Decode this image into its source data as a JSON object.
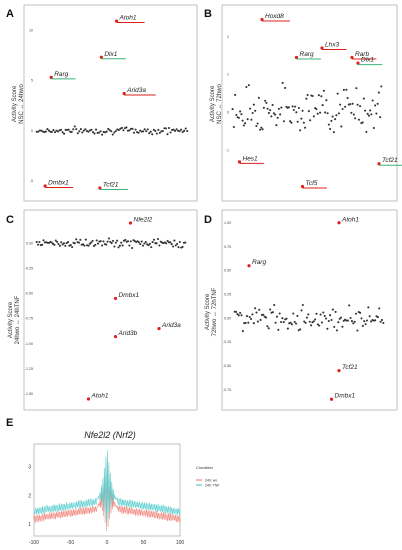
{
  "chart_data": [
    {
      "panel": "A",
      "type": "scatter",
      "ylabel": "Activity Score\nNSC ↔ 24hwo",
      "yticks": [
        "10",
        "5",
        "0",
        "-5"
      ],
      "ylim": [
        -6.5,
        12
      ],
      "xlim": [
        0,
        1
      ],
      "background_points": {
        "count": 100,
        "center": 0,
        "spread": 0.5
      },
      "highlight_color": "#e0211b",
      "underline_colors": {
        "red": "#e0211b",
        "green": "#3bb27a"
      },
      "labeled_points": [
        {
          "gene": "Atoh1",
          "x": 0.53,
          "y": 10.9,
          "underline": "red"
        },
        {
          "gene": "Dlx1",
          "x": 0.43,
          "y": 7.3,
          "underline": "green"
        },
        {
          "gene": "Rarg",
          "x": 0.1,
          "y": 5.3,
          "underline": "green"
        },
        {
          "gene": "Arid3a",
          "x": 0.58,
          "y": 3.7,
          "underline": "red"
        },
        {
          "gene": "Dmbx1",
          "x": 0.06,
          "y": -5.5,
          "underline": "red"
        },
        {
          "gene": "Tcf21",
          "x": 0.42,
          "y": -5.7,
          "underline": "green"
        }
      ]
    },
    {
      "panel": "B",
      "type": "scatter",
      "ylabel": "Activity Score\nNSC ↔ 72hwo",
      "yticks": [
        "2",
        "1",
        "0",
        "-1"
      ],
      "ylim": [
        -2.2,
        2.7
      ],
      "xlim": [
        0,
        1
      ],
      "background_points": {
        "count": 120,
        "center": 0.1,
        "spread": 0.85
      },
      "highlight_color": "#e0211b",
      "underline_colors": {
        "red": "#e0211b",
        "green": "#3bb27a"
      },
      "labeled_points": [
        {
          "gene": "Hoxd8",
          "x": 0.2,
          "y": 2.45,
          "underline": "red"
        },
        {
          "gene": "Lhx3",
          "x": 0.6,
          "y": 1.7,
          "underline": "red"
        },
        {
          "gene": "Rarg",
          "x": 0.43,
          "y": 1.45,
          "underline": "green"
        },
        {
          "gene": "Rarb",
          "x": 0.8,
          "y": 1.45,
          "underline": "red"
        },
        {
          "gene": "Dlx1",
          "x": 0.84,
          "y": 1.3,
          "underline": "green"
        },
        {
          "gene": "Hes1",
          "x": 0.05,
          "y": -1.3,
          "underline": "red"
        },
        {
          "gene": "Tcf5",
          "x": 0.47,
          "y": -1.95,
          "underline": "red"
        },
        {
          "gene": "Tcf21",
          "x": 0.98,
          "y": -1.35,
          "underline": "green"
        }
      ]
    },
    {
      "panel": "C",
      "type": "scatter",
      "ylabel": "Activity Score\n24hwo ↔ 24hTNF",
      "yticks": [
        "0.00",
        "-0.25",
        "-0.50",
        "-0.75",
        "-1.00",
        "-1.25",
        "-1.50"
      ],
      "ylim": [
        -1.6,
        0.25
      ],
      "xlim": [
        0,
        1
      ],
      "background_points": {
        "count": 110,
        "center": 0,
        "spread": 0.06
      },
      "highlight_color": "#e0211b",
      "labeled_points": [
        {
          "gene": "Nfe2l2",
          "x": 0.63,
          "y": 0.2
        },
        {
          "gene": "Dmbx1",
          "x": 0.53,
          "y": -0.55
        },
        {
          "gene": "Arid3a",
          "x": 0.82,
          "y": -0.85
        },
        {
          "gene": "Arid3b",
          "x": 0.53,
          "y": -0.93
        },
        {
          "gene": "Atoh1",
          "x": 0.35,
          "y": -1.55
        }
      ]
    },
    {
      "panel": "D",
      "type": "scatter",
      "ylabel": "Activity Score\n72hwo ↔ 72hTNF",
      "yticks": [
        "1.00",
        "0.75",
        "0.50",
        "0.25",
        "0.00",
        "-0.25",
        "-0.50",
        "-0.75"
      ],
      "ylim": [
        -0.9,
        1.05
      ],
      "xlim": [
        0,
        1
      ],
      "background_points": {
        "count": 110,
        "center": 0,
        "spread": 0.18
      },
      "highlight_color": "#e0211b",
      "labeled_points": [
        {
          "gene": "Atoh1",
          "x": 0.7,
          "y": 1.0
        },
        {
          "gene": "Rarg",
          "x": 0.1,
          "y": 0.55
        },
        {
          "gene": "Tcf21",
          "x": 0.7,
          "y": -0.55
        },
        {
          "gene": "Dmbx1",
          "x": 0.65,
          "y": -0.85
        }
      ]
    },
    {
      "panel": "E",
      "type": "line",
      "title": "Nfe2l2 (Nrf2)",
      "xlim": [
        -100,
        100
      ],
      "ylim": [
        0.6,
        3.8
      ],
      "xticks": [
        -100,
        -50,
        0,
        50,
        100
      ],
      "yticks": [
        1,
        2,
        3
      ],
      "legend": {
        "title": "Condition",
        "placement": "right"
      },
      "series": [
        {
          "name": "24h: wo",
          "color": "#f08a80",
          "baseline": 1.6,
          "peak": 3.4
        },
        {
          "name": "24h: TNF",
          "color": "#5fcfd0",
          "baseline": 1.85,
          "peak": 3.7
        }
      ]
    }
  ]
}
